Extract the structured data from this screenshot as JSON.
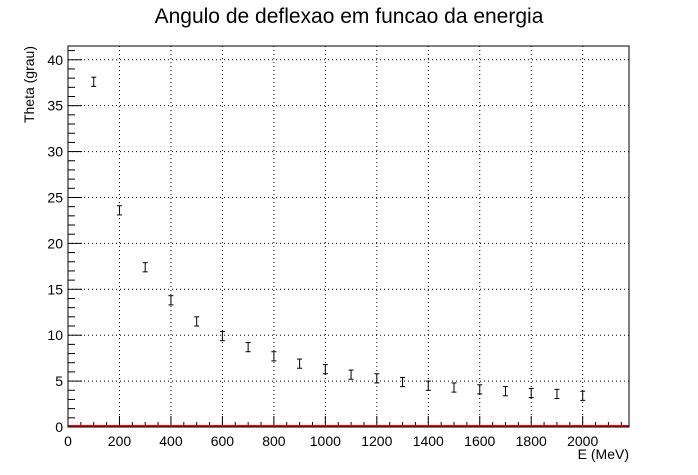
{
  "chart_data": {
    "type": "scatter",
    "title": "Angulo de deflexao em funcao da energia",
    "xlabel": "E (MeV)",
    "ylabel": "Theta (grau)",
    "xlim": [
      0,
      2180
    ],
    "ylim": [
      0,
      41.5
    ],
    "grid": true,
    "x_ticks": [
      0,
      200,
      400,
      600,
      800,
      1000,
      1200,
      1400,
      1600,
      1800,
      2000
    ],
    "x_tick_labels": [
      "0",
      "200",
      "400",
      "600",
      "800",
      "1000",
      "1200",
      "1400",
      "1600",
      "1800",
      "2000"
    ],
    "y_ticks": [
      0,
      5,
      10,
      15,
      20,
      25,
      30,
      35,
      40
    ],
    "y_tick_labels": [
      "0",
      "5",
      "10",
      "15",
      "20",
      "25",
      "30",
      "35",
      "40"
    ],
    "fit_line_color": "#ff0000",
    "fit_line_value": 0,
    "marker_color": "#000000",
    "series": [
      {
        "x": [
          100,
          200,
          300,
          400,
          500,
          600,
          700,
          800,
          900,
          1000,
          1100,
          1200,
          1300,
          1400,
          1500,
          1600,
          1700,
          1800,
          1900,
          2000
        ],
        "y": [
          37.6,
          23.6,
          17.4,
          13.8,
          11.5,
          9.9,
          8.7,
          7.7,
          6.9,
          6.3,
          5.7,
          5.3,
          4.9,
          4.5,
          4.3,
          4.1,
          3.9,
          3.7,
          3.6,
          3.4
        ],
        "err": [
          0.5,
          0.5,
          0.5,
          0.5,
          0.5,
          0.5,
          0.5,
          0.5,
          0.5,
          0.5,
          0.5,
          0.5,
          0.5,
          0.5,
          0.5,
          0.5,
          0.5,
          0.5,
          0.5,
          0.5
        ]
      }
    ]
  }
}
